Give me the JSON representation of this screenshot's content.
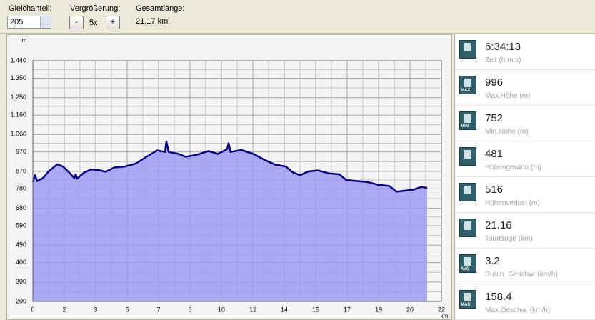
{
  "toolbar": {
    "offset_label": "Gleichanteil:",
    "offset_value": "205",
    "zoom_label": "Vergrößerung:",
    "zoom_minus": "-",
    "zoom_value": "5x",
    "zoom_plus": "+",
    "length_label": "Gesamtlänge:",
    "length_value": "21,17 km"
  },
  "chart_data": {
    "type": "area",
    "y_label": "m",
    "x_label": "km",
    "color": "#000080",
    "fill": "#9c9cf2",
    "grid": true,
    "xlim": [
      0,
      22
    ],
    "ylim": [
      200,
      1440
    ],
    "xticks": [
      0,
      {
        "value": 1.69,
        "label": "2"
      },
      {
        "value": 3.38,
        "label": "3"
      },
      {
        "value": 5.08,
        "label": "5"
      },
      {
        "value": 6.77,
        "label": "7"
      },
      {
        "value": 8.46,
        "label": "8"
      },
      {
        "value": 10.15,
        "label": "10"
      },
      {
        "value": 11.85,
        "label": "12"
      },
      {
        "value": 13.54,
        "label": "14"
      },
      {
        "value": 15.23,
        "label": "15"
      },
      {
        "value": 16.92,
        "label": "17"
      },
      {
        "value": 18.62,
        "label": "19"
      },
      {
        "value": 20.31,
        "label": "20"
      },
      22
    ],
    "yticks": [
      200,
      300,
      400,
      490,
      590,
      680,
      780,
      870,
      970,
      {
        "value": 1060,
        "label": "1.060"
      },
      {
        "value": 1160,
        "label": "1.160"
      },
      {
        "value": 1250,
        "label": "1.250"
      },
      {
        "value": 1350,
        "label": "1.350"
      },
      {
        "value": 1440,
        "label": "1.440"
      }
    ],
    "x": [
      0,
      0.12,
      0.23,
      0.54,
      0.85,
      1.31,
      1.62,
      2.0,
      2.23,
      2.31,
      2.38,
      2.77,
      3.15,
      3.54,
      3.92,
      4.38,
      4.96,
      5.54,
      6.12,
      6.69,
      7.12,
      7.19,
      7.31,
      7.85,
      8.23,
      8.81,
      9.46,
      9.96,
      10.46,
      10.54,
      10.65,
      11.23,
      11.88,
      12.46,
      13.04,
      13.62,
      14.0,
      14.38,
      14.85,
      15.35,
      15.92,
      16.5,
      16.88,
      17.46,
      18.04,
      18.62,
      19.19,
      19.58,
      19.96,
      20.46,
      20.92,
      21.23
    ],
    "values": [
      815,
      850,
      820,
      835,
      870,
      907,
      895,
      860,
      835,
      855,
      833,
      865,
      880,
      877,
      868,
      890,
      895,
      910,
      945,
      978,
      970,
      1024,
      970,
      960,
      945,
      955,
      975,
      960,
      985,
      1015,
      970,
      980,
      960,
      930,
      905,
      895,
      865,
      850,
      870,
      875,
      860,
      855,
      825,
      820,
      815,
      800,
      795,
      765,
      770,
      775,
      790,
      785
    ]
  },
  "stats": [
    {
      "value": "6:34:13",
      "label": "Zeit (h:m:s)"
    },
    {
      "value": "996",
      "label": "Max.Höhe (m)",
      "badge": "MAX"
    },
    {
      "value": "752",
      "label": "Min.Höhe (m)",
      "badge": "MIN"
    },
    {
      "value": "481",
      "label": "Höhengewinn (m)"
    },
    {
      "value": "516",
      "label": "Höhenverlust (m)"
    },
    {
      "value": "21.16",
      "label": "Tourlänge (km)"
    },
    {
      "value": "3.2",
      "label": "Durch. Geschw. (km/h)",
      "badge": "AVG"
    },
    {
      "value": "158.4",
      "label": "Max.Geschw. (km/h)",
      "badge": "MAX"
    }
  ]
}
